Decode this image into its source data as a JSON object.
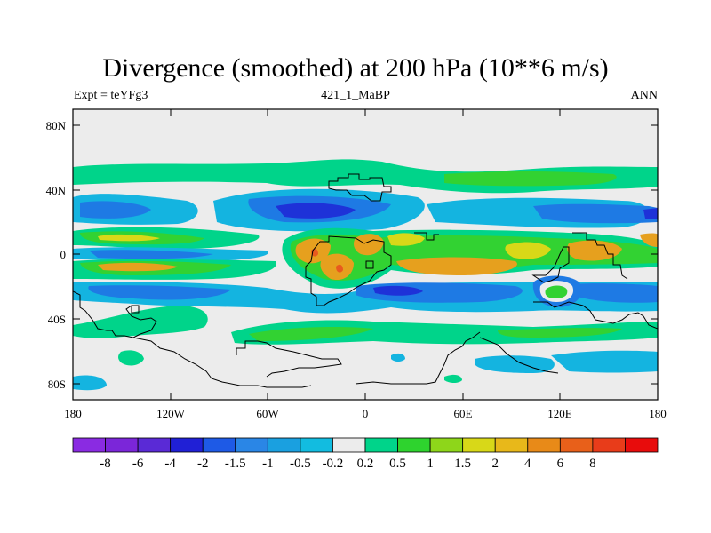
{
  "title": "Divergence (smoothed) at 200 hPa (10**6 m/s)",
  "left_label": "Expt = teYFg3",
  "center_label": "421_1_MaBP",
  "right_label": "ANN",
  "axes": {
    "lat_ticks": [
      "80N",
      "40N",
      "0",
      "40S",
      "80S"
    ],
    "lon_ticks": [
      "180",
      "120W",
      "60W",
      "0",
      "60E",
      "120E",
      "180"
    ]
  },
  "colorbar": {
    "colors": [
      "#8a2be2",
      "#7b26d9",
      "#5a2ad6",
      "#2020d6",
      "#1e5ae6",
      "#2a86e6",
      "#1aa0e0",
      "#12bce0",
      "#ececec",
      "#00d48a",
      "#2ed32e",
      "#8ed61a",
      "#d8d818",
      "#e8b81a",
      "#e88a18",
      "#e8601a",
      "#e83c1a",
      "#e80c0c"
    ],
    "labels": [
      "-8",
      "-6",
      "-4",
      "-2",
      "-1.5",
      "-1",
      "-0.5",
      "-0.2",
      "0.2",
      "0.5",
      "1",
      "1.5",
      "2",
      "4",
      "6",
      "8"
    ]
  },
  "colors": {
    "background": "#ececec",
    "strong_neg": "#1e32d8",
    "mid_neg": "#1e7ae4",
    "weak_neg": "#14b4e0",
    "weak_pos": "#00d48a",
    "mid_pos": "#32d232",
    "strong_pos": "#e6a01e",
    "very_pos": "#e85a1e"
  }
}
